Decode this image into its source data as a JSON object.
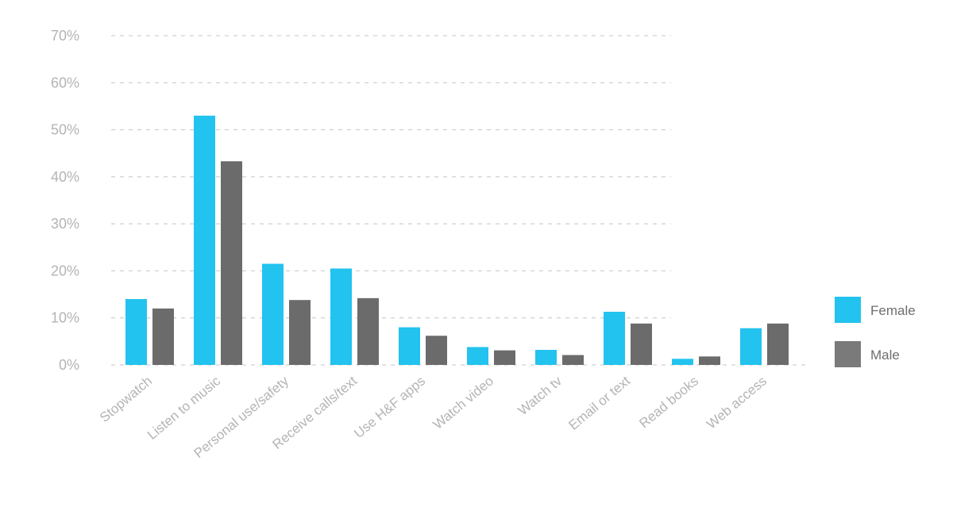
{
  "chart_data": {
    "type": "bar",
    "categories": [
      "Stopwatch",
      "Listen to music",
      "Personal use/safety",
      "Receive calls/text",
      "Use H&F apps",
      "Watch video",
      "Watch tv",
      "Email or text",
      "Read books",
      "Web access"
    ],
    "series": [
      {
        "name": "Female",
        "color": "#22c3ef",
        "values": [
          14,
          53,
          21.5,
          20.5,
          8,
          3.8,
          3.2,
          11.3,
          1.3,
          7.8
        ]
      },
      {
        "name": "Male",
        "color": "#6b6b6b",
        "values": [
          12,
          43.3,
          13.8,
          14.2,
          6.2,
          3.1,
          2.1,
          8.8,
          1.8,
          8.8
        ]
      }
    ],
    "yticks": [
      "0%",
      "10%",
      "20%",
      "30%",
      "40%",
      "50%",
      "60%",
      "70%"
    ],
    "ylim": [
      0,
      70
    ],
    "grid": true,
    "legend_position": "right"
  }
}
